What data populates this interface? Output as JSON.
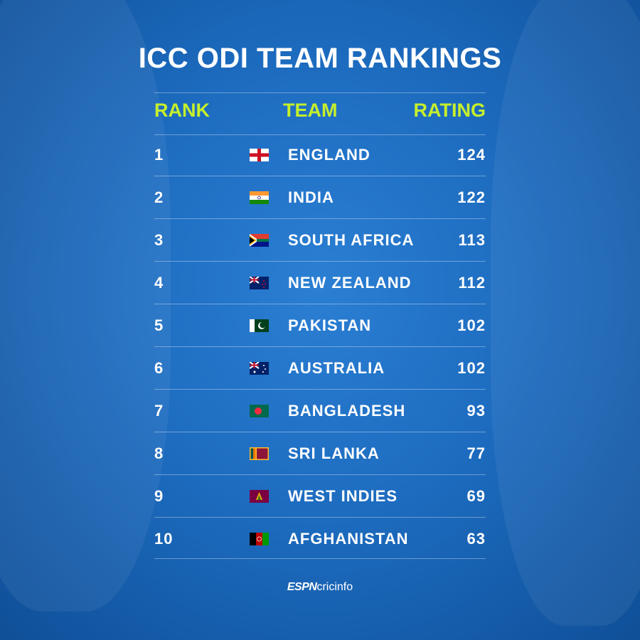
{
  "header": {
    "title": "ICC ODI TEAM RANKINGS"
  },
  "table": {
    "columns": [
      "RANK",
      "TEAM",
      "RATING"
    ],
    "rows": [
      [
        1,
        "ENGLAND",
        124
      ],
      [
        2,
        "INDIA",
        122
      ],
      [
        3,
        "SOUTH AFRICA",
        113
      ],
      [
        4,
        "NEW ZEALAND",
        112
      ],
      [
        5,
        "PAKISTAN",
        102
      ],
      [
        6,
        "AUSTRALIA",
        102
      ],
      [
        7,
        "BANGLADESH",
        93
      ],
      [
        8,
        "SRI LANKA",
        77
      ],
      [
        9,
        "WEST INDIES",
        69
      ],
      [
        10,
        "AFGHANISTAN",
        63
      ]
    ]
  },
  "footer": {
    "logo_mark": "ESPN",
    "logo_text": "cricinfo"
  }
}
